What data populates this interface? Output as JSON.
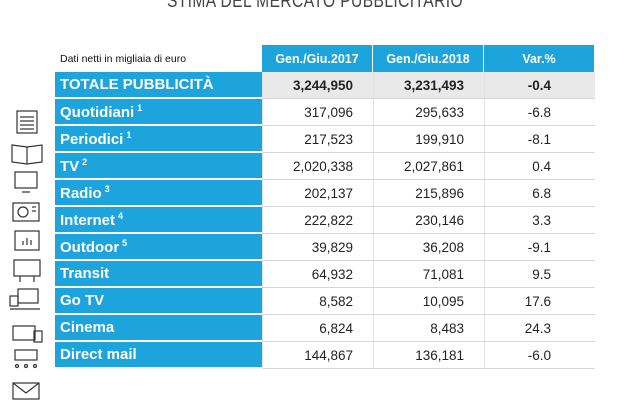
{
  "header": {
    "title": "STIMA DEL MERCATO PUBBLICITARIO"
  },
  "table": {
    "columns": [
      "Dati netti in migliaia di euro",
      "Gen./Giu.2017",
      "Gen./Giu.2018",
      "Var.%"
    ],
    "rows": [
      {
        "label": "TOTALE PUBBLICITÀ",
        "values": [
          "3,244,950",
          "3,231,493",
          "-0.4"
        ]
      },
      {
        "label": "Quotidiani",
        "note": "1",
        "values": [
          "317,096",
          "295,633",
          "-6.8"
        ]
      },
      {
        "label": "Periodici",
        "note": "1",
        "values": [
          "217,523",
          "199,910",
          "-8.1"
        ]
      },
      {
        "label": "TV",
        "note": "2",
        "values": [
          "2,020,338",
          "2,027,861",
          "0.4"
        ]
      },
      {
        "label": "Radio",
        "note": "3",
        "values": [
          "202,137",
          "215,896",
          "6.8"
        ]
      },
      {
        "label": "Internet",
        "note": "4",
        "values": [
          "222,822",
          "230,146",
          "3.3"
        ]
      },
      {
        "label": "Outdoor",
        "note": "5",
        "values": [
          "39,829",
          "36,208",
          "-9.1"
        ]
      },
      {
        "label": "Transit",
        "values": [
          "64,932",
          "71,081",
          "9.5"
        ]
      },
      {
        "label": "Go TV",
        "values": [
          "8,582",
          "10,095",
          "17.6"
        ]
      },
      {
        "label": "Cinema",
        "values": [
          "6,824",
          "8,483",
          "24.3"
        ]
      },
      {
        "label": "Direct mail",
        "values": [
          "144,867",
          "136,181",
          "-6.0"
        ]
      }
    ]
  }
}
